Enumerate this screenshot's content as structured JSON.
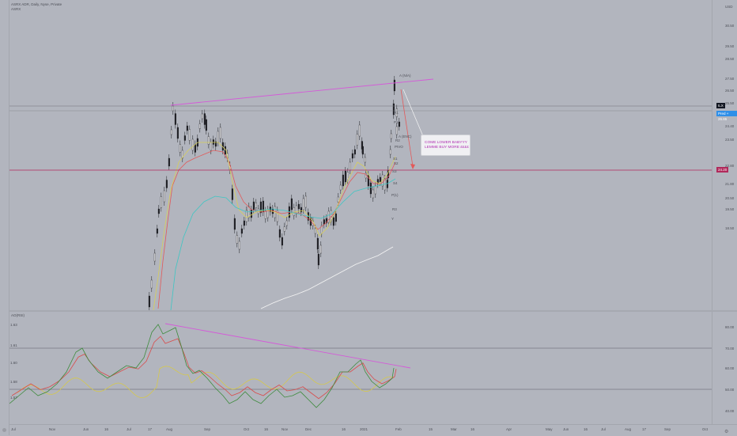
{
  "header": {
    "symbol_line": "ASRX ADR, Daily, Nyse, Private",
    "sub_line": "ASRX"
  },
  "currency": "USD",
  "price_scale": [
    "30.50",
    "29.50",
    "28.50",
    "27.50",
    "26.50",
    "25.50",
    "24.40",
    "23.50",
    "22.80",
    "21.80",
    "20.50",
    "19.50",
    "18.50"
  ],
  "badges": {
    "last_label": "ILX",
    "pred_label": "Pred + 26.85",
    "level_label": "24.20"
  },
  "annotations": {
    "high_label": "A (N/A)",
    "mid_label": "A (ENC)",
    "wave_labels": [
      "R1",
      "P1",
      "R2",
      "PIVO",
      "S1",
      "S2",
      "S3",
      "S4",
      "P(1)",
      "R3",
      "Y"
    ]
  },
  "callout": {
    "line1": "COME LOWER BABYYY",
    "line2": "LEMME BUY MORE ££££"
  },
  "oscillator": {
    "name": "AO(RSI)",
    "left_scale": [
      "1.63",
      "1.61",
      "1.60",
      "1.58",
      "1.57"
    ],
    "right_scale": [
      "80.00",
      "70.00",
      "60.00",
      "50.00",
      "40.00"
    ]
  },
  "time_axis": [
    "Jul",
    "Nov",
    "Jun",
    "16",
    "Jul",
    "17",
    "Aug",
    "Sep",
    "Oct",
    "16",
    "Nov",
    "Dec",
    "16",
    "2021",
    "Feb",
    "15",
    "Mar",
    "16",
    "Apr",
    "May",
    "Jun",
    "16",
    "Jul",
    "Aug",
    "17",
    "Sep",
    "Oct"
  ],
  "colors": {
    "background": "#b2b5be",
    "trendline": "#d45bd8",
    "ema_red": "#e25a5a",
    "ema_yellow": "#d8cf5a",
    "ema_cyan": "#3fc6c3",
    "sma_white": "#f3f3f3",
    "resistance_line": "#b0295b",
    "osc_green": "#3e8b3d",
    "osc_red": "#d94c4c",
    "osc_yellow": "#d5c84e"
  }
}
